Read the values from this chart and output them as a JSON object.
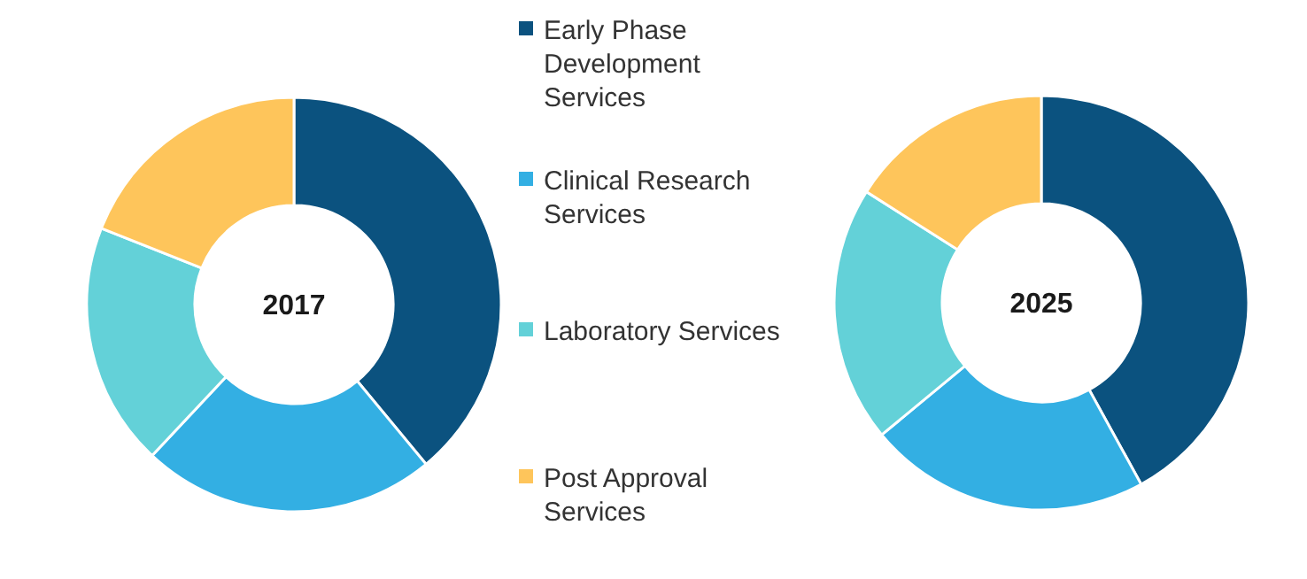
{
  "chart_data": [
    {
      "type": "donut",
      "title": "2017",
      "categories": [
        "Early Phase Development Services",
        "Clinical Research Services",
        "Laboratory Services",
        "Post Approval Services"
      ],
      "values": [
        39,
        23,
        19,
        19
      ],
      "colors": [
        "#0b527f",
        "#33afe3",
        "#63d1d8",
        "#fec55b"
      ],
      "legend": "right"
    },
    {
      "type": "donut",
      "title": "2025",
      "categories": [
        null,
        null,
        null,
        null
      ],
      "values": [
        42,
        22,
        20,
        16
      ],
      "colors": [
        "#0b527f",
        "#33afe3",
        "#63d1d8",
        "#fec55b"
      ],
      "legend": false
    }
  ]
}
